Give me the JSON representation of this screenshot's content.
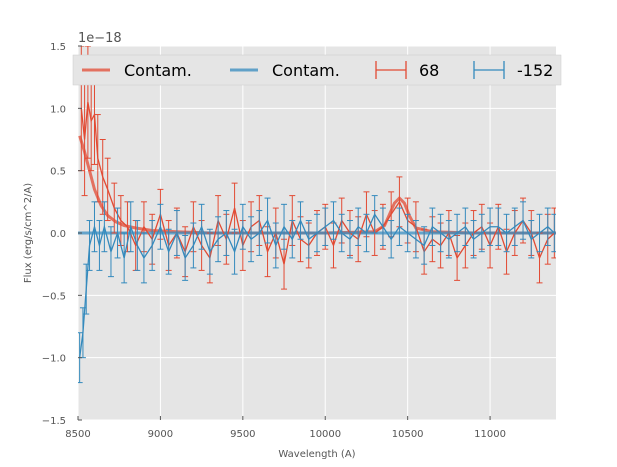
{
  "chart_data": {
    "type": "line",
    "title": "",
    "xlabel": "Wavelength (A)",
    "ylabel": "Flux (erg/s/cm^2/A)",
    "xlim": [
      8500,
      11400
    ],
    "ylim": [
      -1.5,
      1.5
    ],
    "y_offset_text": "1e−18",
    "xticks": [
      8500,
      9000,
      9500,
      10000,
      10500,
      11000
    ],
    "xtick_labels": [
      "8500",
      "9000",
      "9500",
      "10000",
      "10500",
      "11000"
    ],
    "yticks": [
      -1.5,
      -1.0,
      -0.5,
      0.0,
      0.5,
      1.0,
      1.5
    ],
    "ytick_labels": [
      "−1.5",
      "−1.0",
      "−0.5",
      "0.0",
      "0.5",
      "1.0",
      "1.5"
    ],
    "grid": true,
    "legend_position": "top",
    "legend": [
      "Contam.",
      "Contam.",
      "68",
      "-152"
    ],
    "colors": {
      "red": "#e24a33",
      "blue": "#348abd",
      "background": "#e5e5e5",
      "grid": "#ffffff"
    },
    "series": [
      {
        "name": "Contam.",
        "kind": "model",
        "color": "#e24a33",
        "x": [
          8510,
          8540,
          8570,
          8600,
          8640,
          8680,
          8730,
          8780,
          8850,
          8950,
          9100,
          9300,
          9600,
          10000,
          10300,
          10360,
          10390,
          10420,
          10450,
          10480,
          10510,
          10550,
          10650,
          10900,
          11400
        ],
        "y": [
          0.78,
          0.65,
          0.5,
          0.35,
          0.22,
          0.14,
          0.09,
          0.06,
          0.04,
          0.02,
          0.01,
          0.0,
          0.0,
          0.0,
          0.01,
          0.06,
          0.15,
          0.24,
          0.28,
          0.24,
          0.14,
          0.04,
          0.01,
          0.0,
          0.0
        ]
      },
      {
        "name": "Contam.",
        "kind": "model",
        "color": "#348abd",
        "x": [
          8500,
          9000,
          9500,
          10000,
          10500,
          11000,
          11400
        ],
        "y": [
          0.0,
          0.0,
          0.0,
          0.0,
          0.0,
          0.0,
          0.0
        ]
      },
      {
        "name": "68",
        "kind": "errorbar",
        "color": "#e24a33",
        "x": [
          8520,
          8540,
          8560,
          8580,
          8600,
          8620,
          8650,
          8680,
          8720,
          8760,
          8800,
          8850,
          8900,
          8950,
          9000,
          9050,
          9100,
          9150,
          9200,
          9250,
          9300,
          9350,
          9400,
          9450,
          9500,
          9550,
          9600,
          9650,
          9700,
          9750,
          9800,
          9850,
          9900,
          9950,
          10000,
          10050,
          10100,
          10150,
          10200,
          10250,
          10300,
          10350,
          10400,
          10450,
          10500,
          10550,
          10600,
          10650,
          10700,
          10750,
          10800,
          10850,
          10900,
          10950,
          11000,
          11050,
          11100,
          11150,
          11200,
          11250,
          11300,
          11350,
          11390
        ],
        "y": [
          1.0,
          0.75,
          1.05,
          0.9,
          0.95,
          0.6,
          0.45,
          0.35,
          0.2,
          0.1,
          0.05,
          -0.1,
          0.05,
          -0.05,
          0.15,
          -0.1,
          0.0,
          -0.15,
          0.05,
          -0.1,
          -0.2,
          0.1,
          -0.05,
          0.2,
          -0.1,
          0.05,
          0.1,
          -0.15,
          0.0,
          -0.25,
          0.1,
          -0.05,
          -0.1,
          0.0,
          0.05,
          -0.1,
          0.1,
          0.0,
          -0.05,
          0.15,
          0.0,
          0.05,
          0.15,
          0.25,
          0.1,
          0.05,
          -0.15,
          -0.05,
          -0.1,
          0.0,
          -0.2,
          -0.1,
          0.0,
          0.05,
          -0.1,
          0.05,
          -0.15,
          0.0,
          0.1,
          0.0,
          -0.2,
          -0.05,
          0.0
        ],
        "err": [
          0.5,
          0.45,
          0.45,
          0.4,
          0.4,
          0.35,
          0.3,
          0.25,
          0.2,
          0.2,
          0.2,
          0.2,
          0.2,
          0.2,
          0.2,
          0.2,
          0.2,
          0.2,
          0.2,
          0.2,
          0.2,
          0.2,
          0.2,
          0.2,
          0.2,
          0.2,
          0.2,
          0.2,
          0.2,
          0.2,
          0.2,
          0.18,
          0.18,
          0.18,
          0.18,
          0.18,
          0.18,
          0.18,
          0.18,
          0.18,
          0.18,
          0.18,
          0.18,
          0.2,
          0.18,
          0.2,
          0.18,
          0.18,
          0.18,
          0.18,
          0.18,
          0.18,
          0.18,
          0.18,
          0.18,
          0.18,
          0.18,
          0.18,
          0.18,
          0.18,
          0.2,
          0.2,
          0.2
        ]
      },
      {
        "name": "-152",
        "kind": "errorbar",
        "color": "#348abd",
        "x": [
          8510,
          8530,
          8550,
          8570,
          8600,
          8630,
          8660,
          8700,
          8740,
          8780,
          8820,
          8860,
          8900,
          8950,
          9000,
          9050,
          9100,
          9150,
          9200,
          9250,
          9300,
          9350,
          9400,
          9450,
          9500,
          9550,
          9600,
          9650,
          9700,
          9750,
          9800,
          9850,
          9900,
          9950,
          10000,
          10050,
          10100,
          10150,
          10200,
          10250,
          10300,
          10350,
          10400,
          10450,
          10500,
          10550,
          10600,
          10650,
          10700,
          10750,
          10800,
          10850,
          10900,
          10950,
          11000,
          11050,
          11100,
          11150,
          11200,
          11250,
          11300,
          11350,
          11390
        ],
        "y": [
          -1.0,
          -0.8,
          -0.45,
          -0.1,
          0.05,
          -0.1,
          0.05,
          -0.15,
          0.0,
          -0.2,
          0.05,
          -0.1,
          -0.2,
          -0.1,
          0.05,
          -0.15,
          0.0,
          -0.2,
          -0.1,
          0.05,
          -0.15,
          -0.05,
          0.0,
          -0.15,
          0.05,
          -0.05,
          0.0,
          0.1,
          -0.1,
          0.05,
          -0.05,
          0.1,
          -0.05,
          0.0,
          0.05,
          0.1,
          0.0,
          -0.05,
          0.05,
          0.0,
          0.15,
          0.05,
          -0.05,
          0.05,
          0.0,
          -0.05,
          -0.1,
          0.05,
          0.0,
          -0.05,
          0.0,
          0.05,
          -0.05,
          0.0,
          0.05,
          0.05,
          0.0,
          0.05,
          0.1,
          -0.05,
          0.0,
          0.05,
          0.0
        ],
        "err": [
          0.2,
          0.2,
          0.2,
          0.2,
          0.2,
          0.2,
          0.2,
          0.2,
          0.2,
          0.2,
          0.2,
          0.2,
          0.2,
          0.2,
          0.18,
          0.18,
          0.18,
          0.18,
          0.18,
          0.18,
          0.18,
          0.18,
          0.18,
          0.18,
          0.18,
          0.18,
          0.18,
          0.18,
          0.18,
          0.18,
          0.15,
          0.15,
          0.15,
          0.15,
          0.15,
          0.15,
          0.15,
          0.15,
          0.15,
          0.15,
          0.15,
          0.15,
          0.15,
          0.15,
          0.15,
          0.15,
          0.15,
          0.15,
          0.15,
          0.15,
          0.15,
          0.15,
          0.15,
          0.15,
          0.15,
          0.15,
          0.15,
          0.15,
          0.15,
          0.15,
          0.15,
          0.15,
          0.15
        ]
      }
    ]
  }
}
